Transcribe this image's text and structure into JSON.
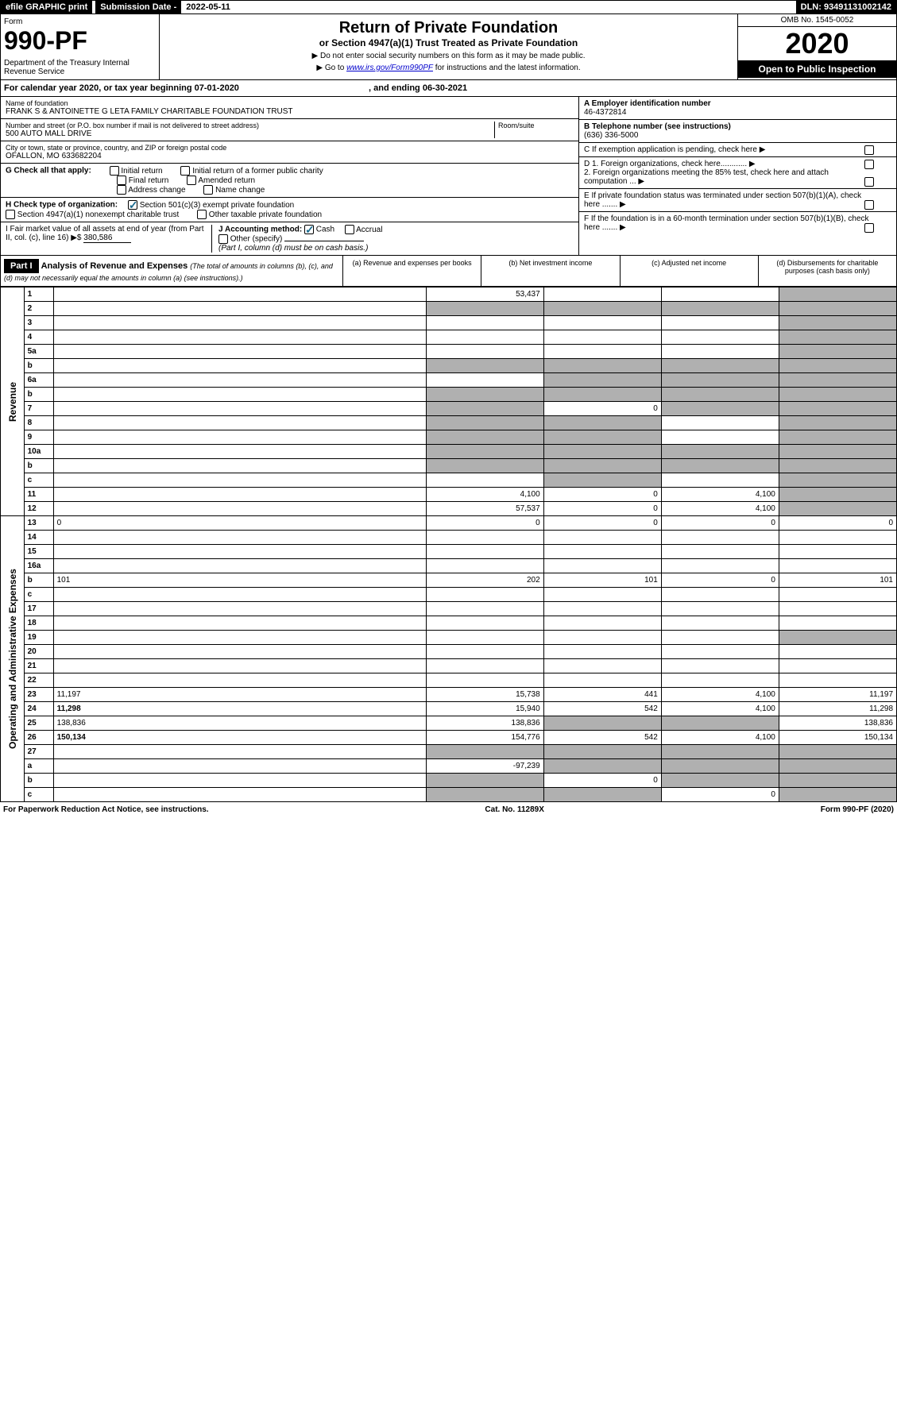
{
  "topbar": {
    "efile": "efile GRAPHIC print",
    "subdate_label": "Submission Date - ",
    "subdate_value": "2022-05-11",
    "dln": "DLN: 93491131002142"
  },
  "header": {
    "form_label": "Form",
    "form_number": "990-PF",
    "dept": "Department of the Treasury\nInternal Revenue Service",
    "title": "Return of Private Foundation",
    "subtitle": "or Section 4947(a)(1) Trust Treated as Private Foundation",
    "note1": "▶ Do not enter social security numbers on this form as it may be made public.",
    "note2": "▶ Go to www.irs.gov/Form990PF for instructions and the latest information.",
    "omb": "OMB No. 1545-0052",
    "year": "2020",
    "open": "Open to Public Inspection"
  },
  "calendar": {
    "text_a": "For calendar year 2020, or tax year beginning ",
    "begin": "07-01-2020",
    "text_b": ", and ending ",
    "end": "06-30-2021"
  },
  "info": {
    "name_label": "Name of foundation",
    "name": "FRANK S & ANTOINETTE G LETA FAMILY CHARITABLE FOUNDATION TRUST",
    "addr_label": "Number and street (or P.O. box number if mail is not delivered to street address)",
    "addr": "500 AUTO MALL DRIVE",
    "room_label": "Room/suite",
    "city_label": "City or town, state or province, country, and ZIP or foreign postal code",
    "city": "OFALLON, MO  633682204",
    "ein_label": "A Employer identification number",
    "ein": "46-4372814",
    "phone_label": "B Telephone number (see instructions)",
    "phone": "(636) 336-5000",
    "c_label": "C If exemption application is pending, check here",
    "d1_label": "D 1. Foreign organizations, check here............",
    "d2_label": "2. Foreign organizations meeting the 85% test, check here and attach computation ...",
    "e_label": "E If private foundation status was terminated under section 507(b)(1)(A), check here .......",
    "f_label": "F If the foundation is in a 60-month termination under section 507(b)(1)(B), check here .......",
    "g_label": "G Check all that apply:",
    "g_items": [
      "Initial return",
      "Initial return of a former public charity",
      "Final return",
      "Amended return",
      "Address change",
      "Name change"
    ],
    "h_label": "H Check type of organization:",
    "h_items": [
      "Section 501(c)(3) exempt private foundation",
      "Section 4947(a)(1) nonexempt charitable trust",
      "Other taxable private foundation"
    ],
    "i_label": "I Fair market value of all assets at end of year (from Part II, col. (c), line 16) ▶$",
    "i_value": "380,586",
    "j_label": "J Accounting method:",
    "j_cash": "Cash",
    "j_accrual": "Accrual",
    "j_other": "Other (specify)",
    "j_note": "(Part I, column (d) must be on cash basis.)"
  },
  "part1": {
    "label": "Part I",
    "title": "Analysis of Revenue and Expenses",
    "note": "(The total of amounts in columns (b), (c), and (d) may not necessarily equal the amounts in column (a) (see instructions).)",
    "col_a": "(a) Revenue and expenses per books",
    "col_b": "(b) Net investment income",
    "col_c": "(c) Adjusted net income",
    "col_d": "(d) Disbursements for charitable purposes (cash basis only)"
  },
  "side_labels": {
    "revenue": "Revenue",
    "expenses": "Operating and Administrative Expenses"
  },
  "rows": [
    {
      "n": "1",
      "d": "",
      "a": "53,437",
      "b": "",
      "c": "",
      "shade": [
        "d"
      ]
    },
    {
      "n": "2",
      "d": "",
      "a": "",
      "b": "",
      "c": "",
      "shade": [
        "a",
        "b",
        "c",
        "d"
      ]
    },
    {
      "n": "3",
      "d": "",
      "a": "",
      "b": "",
      "c": "",
      "shade": [
        "d"
      ]
    },
    {
      "n": "4",
      "d": "",
      "a": "",
      "b": "",
      "c": "",
      "shade": [
        "d"
      ]
    },
    {
      "n": "5a",
      "d": "",
      "a": "",
      "b": "",
      "c": "",
      "shade": [
        "d"
      ]
    },
    {
      "n": "b",
      "d": "",
      "a": "",
      "b": "",
      "c": "",
      "shade": [
        "a",
        "b",
        "c",
        "d"
      ]
    },
    {
      "n": "6a",
      "d": "",
      "a": "",
      "b": "",
      "c": "",
      "shade": [
        "b",
        "c",
        "d"
      ]
    },
    {
      "n": "b",
      "d": "",
      "a": "",
      "b": "",
      "c": "",
      "shade": [
        "a",
        "b",
        "c",
        "d"
      ]
    },
    {
      "n": "7",
      "d": "",
      "a": "",
      "b": "0",
      "c": "",
      "shade": [
        "a",
        "c",
        "d"
      ]
    },
    {
      "n": "8",
      "d": "",
      "a": "",
      "b": "",
      "c": "",
      "shade": [
        "a",
        "b",
        "d"
      ]
    },
    {
      "n": "9",
      "d": "",
      "a": "",
      "b": "",
      "c": "",
      "shade": [
        "a",
        "b",
        "d"
      ]
    },
    {
      "n": "10a",
      "d": "",
      "a": "",
      "b": "",
      "c": "",
      "shade": [
        "a",
        "b",
        "c",
        "d"
      ]
    },
    {
      "n": "b",
      "d": "",
      "a": "",
      "b": "",
      "c": "",
      "shade": [
        "a",
        "b",
        "c",
        "d"
      ]
    },
    {
      "n": "c",
      "d": "",
      "a": "",
      "b": "",
      "c": "",
      "shade": [
        "b",
        "d"
      ]
    },
    {
      "n": "11",
      "d": "",
      "a": "4,100",
      "b": "0",
      "c": "4,100",
      "shade": [
        "d"
      ]
    },
    {
      "n": "12",
      "d": "",
      "a": "57,537",
      "b": "0",
      "c": "4,100",
      "shade": [
        "d"
      ],
      "bold": true
    },
    {
      "n": "13",
      "d": "0",
      "a": "0",
      "b": "0",
      "c": "0"
    },
    {
      "n": "14",
      "d": "",
      "a": "",
      "b": "",
      "c": ""
    },
    {
      "n": "15",
      "d": "",
      "a": "",
      "b": "",
      "c": ""
    },
    {
      "n": "16a",
      "d": "",
      "a": "",
      "b": "",
      "c": ""
    },
    {
      "n": "b",
      "d": "101",
      "a": "202",
      "b": "101",
      "c": "0"
    },
    {
      "n": "c",
      "d": "",
      "a": "",
      "b": "",
      "c": ""
    },
    {
      "n": "17",
      "d": "",
      "a": "",
      "b": "",
      "c": ""
    },
    {
      "n": "18",
      "d": "",
      "a": "",
      "b": "",
      "c": ""
    },
    {
      "n": "19",
      "d": "",
      "a": "",
      "b": "",
      "c": "",
      "shade": [
        "d"
      ]
    },
    {
      "n": "20",
      "d": "",
      "a": "",
      "b": "",
      "c": ""
    },
    {
      "n": "21",
      "d": "",
      "a": "",
      "b": "",
      "c": ""
    },
    {
      "n": "22",
      "d": "",
      "a": "",
      "b": "",
      "c": ""
    },
    {
      "n": "23",
      "d": "11,197",
      "a": "15,738",
      "b": "441",
      "c": "4,100"
    },
    {
      "n": "24",
      "d": "11,298",
      "a": "15,940",
      "b": "542",
      "c": "4,100",
      "bold": true
    },
    {
      "n": "25",
      "d": "138,836",
      "a": "138,836",
      "b": "",
      "c": "",
      "shade": [
        "b",
        "c"
      ]
    },
    {
      "n": "26",
      "d": "150,134",
      "a": "154,776",
      "b": "542",
      "c": "4,100",
      "bold": true
    },
    {
      "n": "27",
      "d": "",
      "a": "",
      "b": "",
      "c": "",
      "shade": [
        "a",
        "b",
        "c",
        "d"
      ]
    },
    {
      "n": "a",
      "d": "",
      "a": "-97,239",
      "b": "",
      "c": "",
      "shade": [
        "b",
        "c",
        "d"
      ],
      "bold": true
    },
    {
      "n": "b",
      "d": "",
      "a": "",
      "b": "0",
      "c": "",
      "shade": [
        "a",
        "c",
        "d"
      ],
      "bold": true
    },
    {
      "n": "c",
      "d": "",
      "a": "",
      "b": "",
      "c": "0",
      "shade": [
        "a",
        "b",
        "d"
      ],
      "bold": true
    }
  ],
  "footer": {
    "left": "For Paperwork Reduction Act Notice, see instructions.",
    "mid": "Cat. No. 11289X",
    "right": "Form 990-PF (2020)"
  }
}
